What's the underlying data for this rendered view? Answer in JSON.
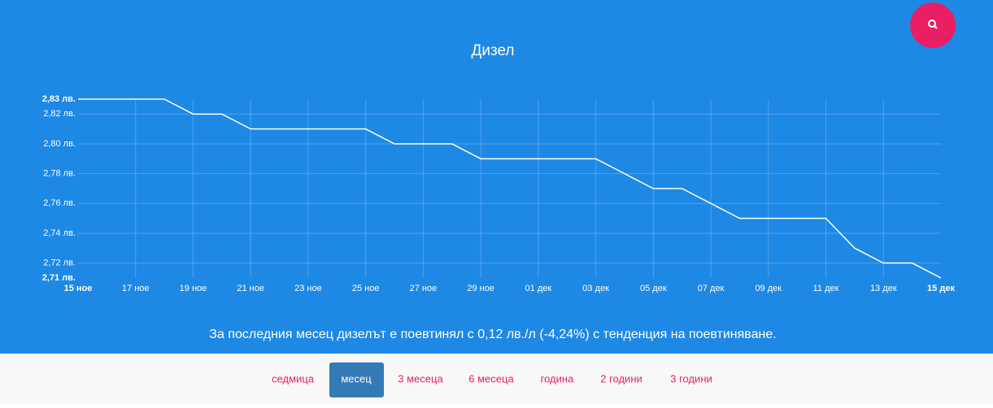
{
  "chart_data": {
    "type": "line",
    "title": "Дизел",
    "categories": [
      "15 ное",
      null,
      "17 ное",
      null,
      "19 ное",
      null,
      "21 ное",
      null,
      "23 ное",
      null,
      "25 ное",
      null,
      "27 ное",
      null,
      "29 ное",
      null,
      "01 дек",
      null,
      "03 дек",
      null,
      "05 дек",
      null,
      "07 дек",
      null,
      "09 дек",
      null,
      "11 дек",
      null,
      "13 дек",
      null,
      "15 дек"
    ],
    "series": [
      {
        "name": "Дизел",
        "color": "#ffffff",
        "values": [
          2.83,
          2.83,
          2.83,
          2.83,
          2.82,
          2.82,
          2.81,
          2.81,
          2.81,
          2.81,
          2.81,
          2.8,
          2.8,
          2.8,
          2.79,
          2.79,
          2.79,
          2.79,
          2.79,
          2.78,
          2.77,
          2.77,
          2.76,
          2.75,
          2.75,
          2.75,
          2.75,
          2.73,
          2.72,
          2.72,
          2.71
        ]
      }
    ],
    "ylim": [
      2.71,
      2.83
    ],
    "yticks": [
      {
        "value": 2.71,
        "label": "2,71 лв."
      },
      {
        "value": 2.72,
        "label": "2,72 лв."
      },
      {
        "value": 2.74,
        "label": "2,74 лв."
      },
      {
        "value": 2.76,
        "label": "2,76 лв."
      },
      {
        "value": 2.78,
        "label": "2,78 лв."
      },
      {
        "value": 2.8,
        "label": "2,80 лв."
      },
      {
        "value": 2.82,
        "label": "2,82 лв."
      },
      {
        "value": 2.83,
        "label": "2,83 лв."
      }
    ],
    "grid": true
  },
  "summary": "За последния месец дизелът е поевтинял с 0,12 лв./л (-4,24%) с тенденция на поевтиняване.",
  "periods": [
    "седмица",
    "месец",
    "3 месеца",
    "6 месеца",
    "година",
    "2 години",
    "3 години"
  ],
  "active_period": "месец"
}
